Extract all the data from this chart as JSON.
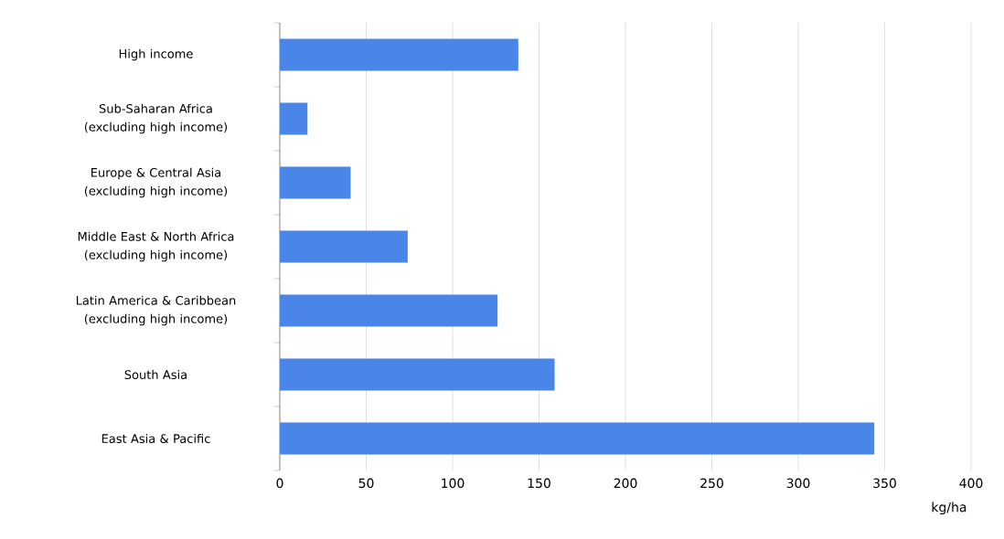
{
  "chart_data": {
    "type": "bar",
    "orientation": "horizontal",
    "xlabel": "kg/ha",
    "categories": [
      "High income",
      "Sub-Saharan Africa (excluding high income)",
      "Europe & Central Asia (excluding high income)",
      "Middle East & North Africa (excluding high income)",
      "Latin America & Caribbean (excluding high income)",
      "South Asia",
      "East Asia & Pacific"
    ],
    "values": [
      138,
      16,
      41,
      74,
      126,
      159,
      344
    ],
    "color": "#4a86e8",
    "xlim": [
      0,
      400
    ],
    "xticks": [
      0,
      50,
      100,
      150,
      200,
      250,
      300,
      350,
      400
    ],
    "grid": "x"
  }
}
